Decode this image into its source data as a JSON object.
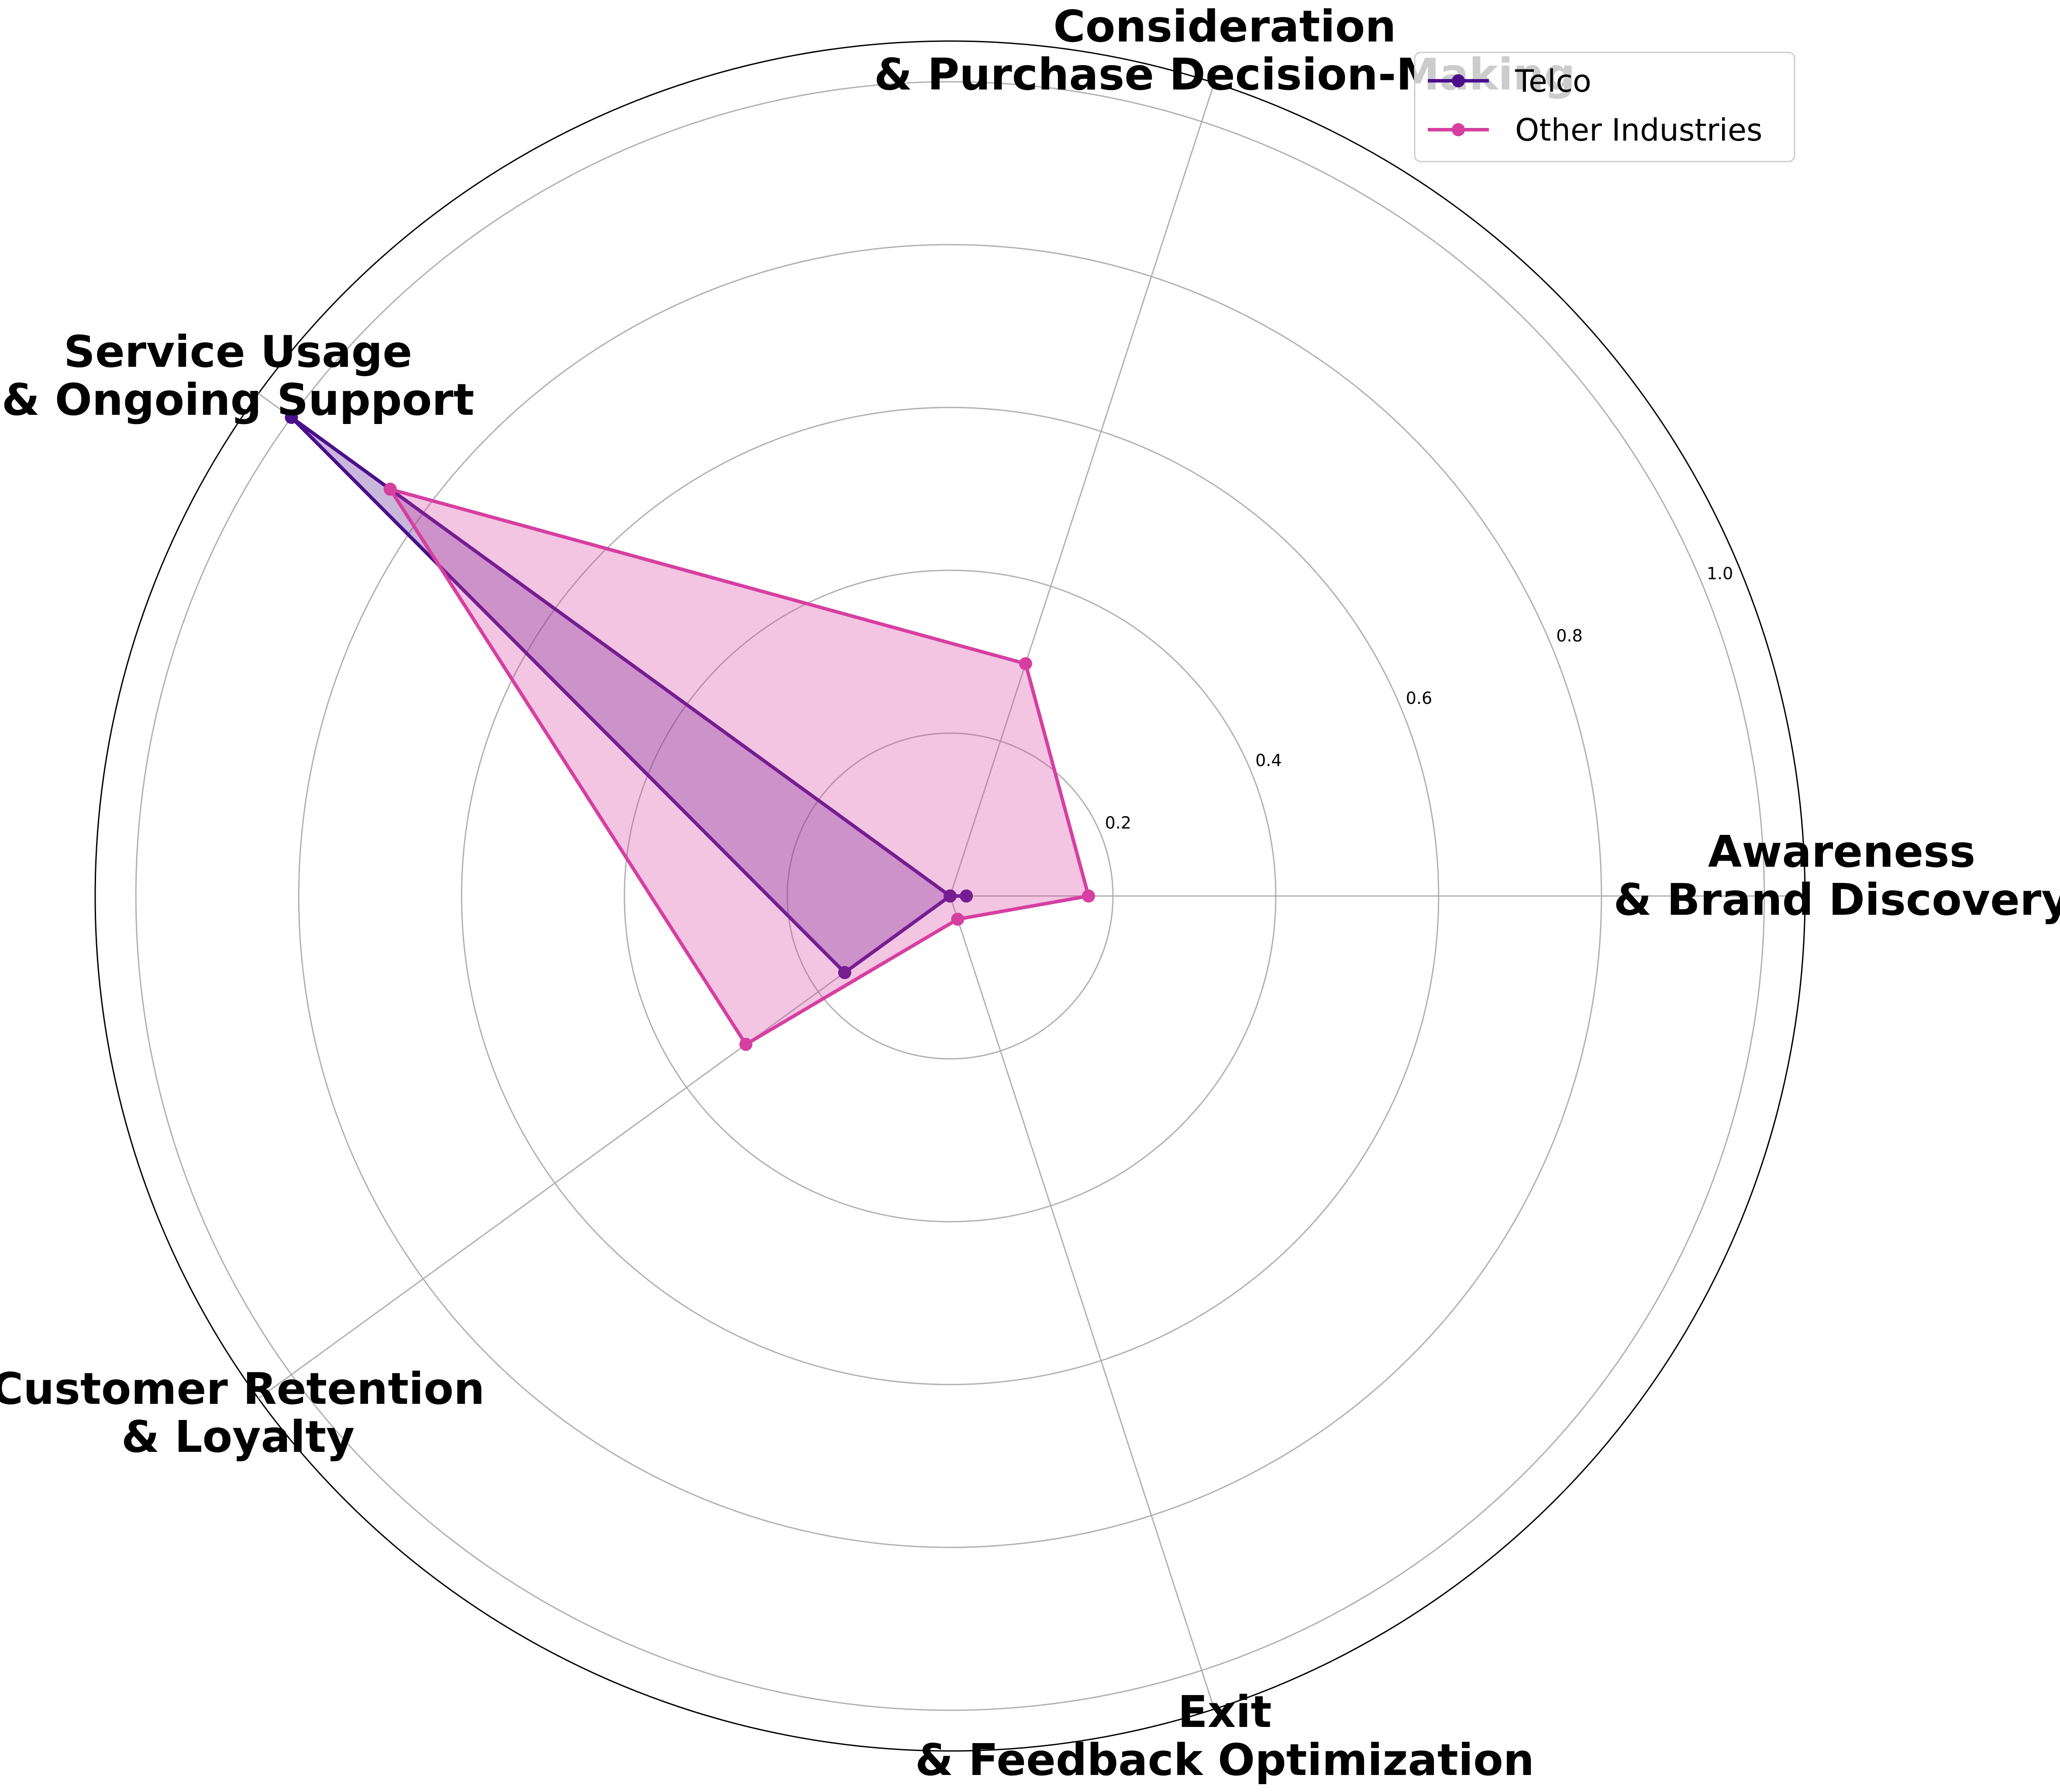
{
  "chart_data": {
    "type": "radar",
    "categories": [
      "Awareness\n& Brand Discovery",
      "Consideration\n& Purchase Decision-Making",
      "Service Usage\n& Ongoing Support",
      "Customer Retention\n& Loyalty",
      "Exit\n& Feedback Optimization"
    ],
    "series": [
      {
        "name": "Telco",
        "values": [
          0.02,
          0.0,
          1.0,
          0.16,
          0.0
        ],
        "color": "#4b0f8c"
      },
      {
        "name": "Other Industries",
        "values": [
          0.17,
          0.3,
          0.85,
          0.31,
          0.03
        ],
        "color": "#d63fa0"
      }
    ],
    "rlim": [
      0,
      1.05
    ],
    "rticks": [
      "0.2",
      "0.4",
      "0.6",
      "0.8",
      "1.0"
    ],
    "rtick_values": [
      0.2,
      0.4,
      0.6,
      0.8,
      1.0
    ],
    "grid": true,
    "legend_position": "top-right"
  }
}
